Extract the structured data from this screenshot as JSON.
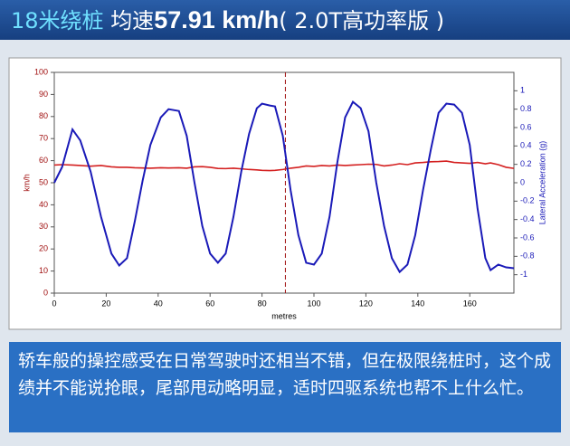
{
  "header": {
    "part1": "18米绕桩",
    "part2": "均速",
    "part3": "57.91 km/h",
    "part4": "( 2.0T高功率版 )"
  },
  "chart_data": {
    "type": "line",
    "xlabel": "metres",
    "ylabel": "km/h",
    "y2label": "Lateral Acceleration (g)",
    "x": [
      0,
      3,
      7,
      10,
      14,
      18,
      22,
      25,
      28,
      31,
      34,
      37,
      41,
      44,
      48,
      51,
      54,
      57,
      60,
      63,
      66,
      69,
      72,
      75,
      78,
      80,
      83,
      85,
      88,
      91,
      94,
      97,
      100,
      103,
      106,
      109,
      112,
      115,
      118,
      121,
      124,
      127,
      130,
      133,
      136,
      139,
      142,
      145,
      148,
      151,
      154,
      157,
      160,
      163,
      166,
      168,
      171,
      174,
      177
    ],
    "series": [
      {
        "name": "km/h",
        "color": "#d42020",
        "axis": "y",
        "values": [
          58,
          58.2,
          58,
          57.8,
          57.5,
          57.8,
          57.2,
          57,
          57,
          56.8,
          56.7,
          56.6,
          56.8,
          56.7,
          56.8,
          56.6,
          57.2,
          57.3,
          57,
          56.5,
          56.4,
          56.6,
          56.3,
          56,
          55.8,
          55.6,
          55.5,
          55.6,
          56,
          56.6,
          57,
          57.6,
          57.4,
          57.8,
          57.6,
          58,
          57.8,
          58,
          58.2,
          58.4,
          58.3,
          57.6,
          58,
          58.6,
          58.2,
          59,
          59.2,
          59.5,
          59.6,
          59.8,
          59.2,
          59,
          58.8,
          59.2,
          58.6,
          59,
          58.2,
          57,
          56.5
        ]
      },
      {
        "name": "Lateral Acceleration (g)",
        "color": "#1a1ab8",
        "axis": "y2",
        "values": [
          0,
          0.17,
          0.58,
          0.46,
          0.12,
          -0.37,
          -0.77,
          -0.9,
          -0.82,
          -0.42,
          0.02,
          0.41,
          0.71,
          0.8,
          0.78,
          0.51,
          0,
          -0.47,
          -0.77,
          -0.87,
          -0.77,
          -0.37,
          0.12,
          0.53,
          0.81,
          0.86,
          0.84,
          0.83,
          0.51,
          -0.08,
          -0.57,
          -0.87,
          -0.89,
          -0.77,
          -0.37,
          0.22,
          0.71,
          0.88,
          0.81,
          0.56,
          0,
          -0.47,
          -0.82,
          -0.97,
          -0.89,
          -0.57,
          -0.08,
          0.36,
          0.76,
          0.86,
          0.85,
          0.76,
          0.41,
          -0.28,
          -0.82,
          -0.95,
          -0.89,
          -0.92,
          -0.93
        ]
      }
    ],
    "xlim": [
      0,
      177
    ],
    "xticks": [
      0,
      20,
      40,
      60,
      80,
      100,
      120,
      140,
      160
    ],
    "ylim": [
      0,
      100
    ],
    "yticks": [
      0,
      10,
      20,
      30,
      40,
      50,
      60,
      70,
      80,
      90,
      100
    ],
    "y2lim": [
      -1.2,
      1.2
    ],
    "y2ticks": [
      -1,
      -0.8,
      -0.6,
      -0.4,
      -0.2,
      0,
      0.2,
      0.4,
      0.6,
      0.8,
      1
    ],
    "vline_x": 89
  },
  "footer": {
    "text": "轿车般的操控感受在日常驾驶时还相当不错，但在极限绕桩时，这个成绩并不能说抢眼，尾部甩动略明显，适时四驱系统也帮不上什么忙。"
  }
}
